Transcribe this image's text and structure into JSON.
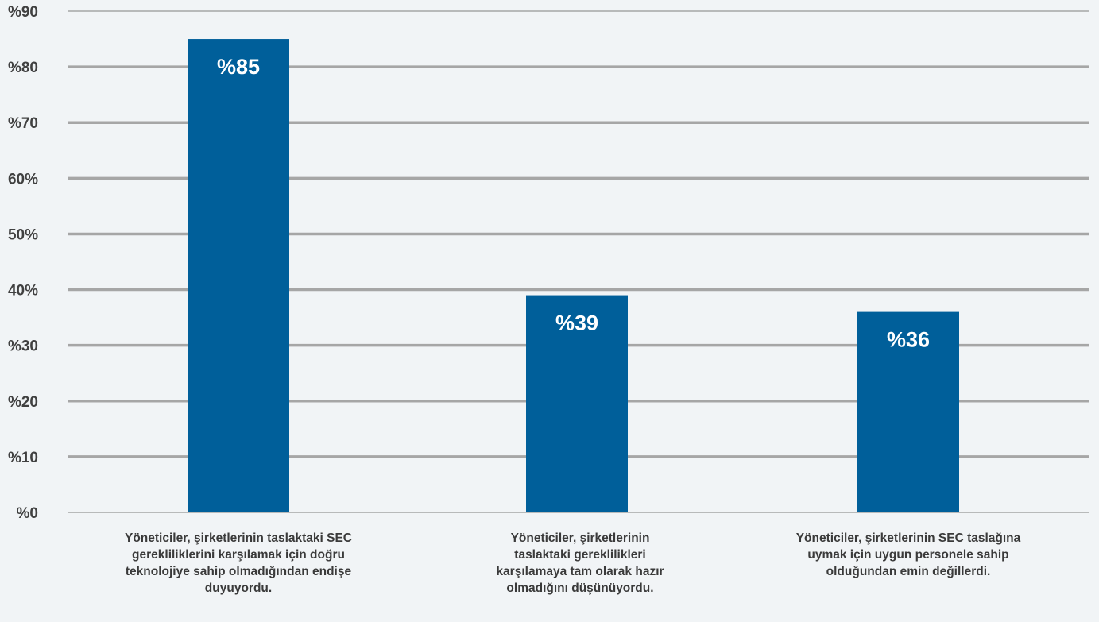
{
  "chart_data": {
    "type": "bar",
    "categories": [
      "Yöneticiler, şirketlerinin taslaktaki SEC gerekliliklerini karşılamak için doğru teknolojiye sahip olmadığından endişe duyuyordu.",
      "Yöneticiler, şirketlerinin taslaktaki gereklilikleri karşılamaya tam olarak hazır olmadığını düşünüyordu.",
      "Yöneticiler, şirketlerinin SEC taslağına uymak için uygun personele sahip olduğundan emin değillerdi."
    ],
    "values": [
      85,
      39,
      36
    ],
    "data_labels": [
      "%85",
      "%39",
      "%36"
    ],
    "ylim": [
      0,
      90
    ],
    "y_ticks": [
      0,
      10,
      20,
      30,
      40,
      50,
      60,
      70,
      80,
      90
    ],
    "y_tick_labels": [
      "%0",
      "%10",
      "%20",
      "%30",
      "40%",
      "50%",
      "60%",
      "%70",
      "%80",
      "%90"
    ],
    "title": "",
    "xlabel": "",
    "ylabel": "",
    "grid": true,
    "legend": "none",
    "colors": {
      "bar": "#005f9a",
      "grid": "#a6a6a6",
      "background": "#f1f4f6",
      "text": "#404040",
      "data_label": "#ffffff"
    }
  }
}
